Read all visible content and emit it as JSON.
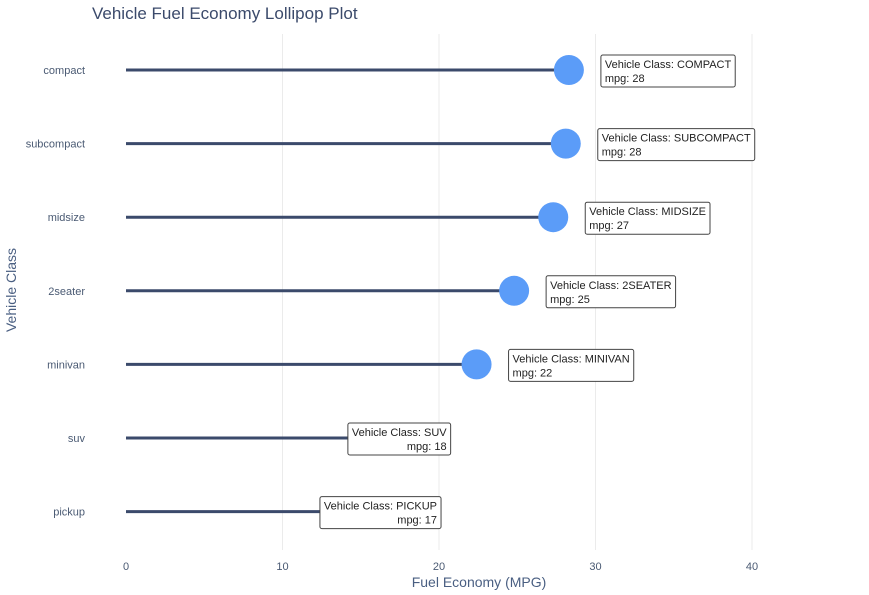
{
  "chart_data": {
    "type": "lollipop",
    "title": "Vehicle Fuel Economy Lollipop Plot",
    "xlabel": "Fuel Economy (MPG)",
    "ylabel": "Vehicle Class",
    "xlim": [
      0,
      40
    ],
    "x_ticks": [
      0,
      10,
      20,
      30,
      40
    ],
    "grid": true,
    "categories": [
      "compact",
      "subcompact",
      "midsize",
      "2seater",
      "minivan",
      "suv",
      "pickup"
    ],
    "values": [
      28.3,
      28.1,
      27.3,
      24.8,
      22.4,
      18.1,
      16.9
    ],
    "hover_labels": [
      {
        "line1": "Vehicle Class: COMPACT",
        "line2": "mpg: 28"
      },
      {
        "line1": "Vehicle Class: SUBCOMPACT",
        "line2": "mpg: 28"
      },
      {
        "line1": "Vehicle Class: MIDSIZE",
        "line2": "mpg: 27"
      },
      {
        "line1": "Vehicle Class: 2SEATER",
        "line2": "mpg: 25"
      },
      {
        "line1": "Vehicle Class: MINIVAN",
        "line2": "mpg: 22"
      },
      {
        "line1": "Vehicle Class: SUV",
        "line2": "mpg: 18"
      },
      {
        "line1": "Vehicle Class: PICKUP",
        "line2": "mpg: 17"
      }
    ],
    "colors": {
      "stem": "#3b4a6b",
      "marker": "#5b9cf8",
      "grid": "#ebebeb",
      "text": "#4a5a73"
    }
  }
}
